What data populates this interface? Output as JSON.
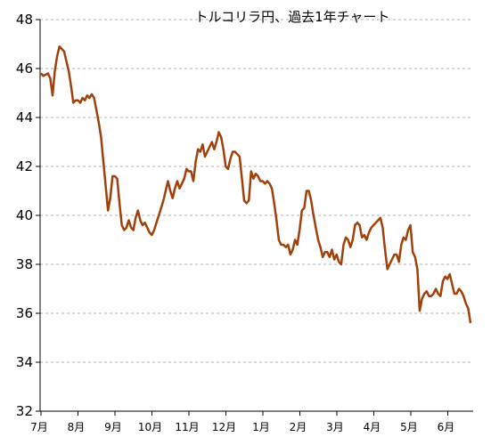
{
  "chart_data": {
    "type": "line",
    "title": "トルコリラ円、過去1年チャート",
    "xlabel": "",
    "ylabel": "",
    "ylim": [
      32,
      48
    ],
    "yticks": [
      32,
      34,
      36,
      38,
      40,
      42,
      44,
      46,
      48
    ],
    "x_ticks": [
      "7月",
      "8月",
      "9月",
      "10月",
      "11月",
      "12月",
      "1月",
      "2月",
      "3月",
      "4月",
      "5月",
      "6月"
    ],
    "grid": "horizontal dashed",
    "colors": {
      "line": "#a0400a",
      "grid": "#b0b0b0",
      "axis": "#000000"
    },
    "series": [
      {
        "values": [
          45.8,
          45.7,
          45.75,
          45.8,
          45.6,
          44.9,
          45.9,
          46.5,
          46.9,
          46.8,
          46.7,
          46.3,
          45.9,
          45.3,
          44.6,
          44.7,
          44.7,
          44.6,
          44.8,
          44.7,
          44.9,
          44.8,
          44.95,
          44.8,
          44.3,
          43.8,
          43.2,
          42.2,
          41.2,
          40.2,
          40.7,
          41.6,
          41.6,
          41.5,
          40.5,
          39.6,
          39.4,
          39.5,
          39.8,
          39.5,
          39.4,
          39.9,
          40.2,
          39.8,
          39.6,
          39.7,
          39.5,
          39.3,
          39.2,
          39.4,
          39.7,
          40.0,
          40.3,
          40.6,
          41.0,
          41.4,
          41.0,
          40.7,
          41.1,
          41.4,
          41.1,
          41.3,
          41.5,
          41.9,
          41.8,
          41.8,
          41.4,
          42.2,
          42.7,
          42.6,
          42.9,
          42.4,
          42.6,
          42.8,
          43.0,
          42.7,
          43.0,
          43.4,
          43.2,
          42.7,
          42.0,
          41.9,
          42.3,
          42.6,
          42.6,
          42.5,
          42.4,
          41.5,
          40.6,
          40.5,
          40.6,
          41.8,
          41.5,
          41.7,
          41.6,
          41.4,
          41.4,
          41.3,
          41.4,
          41.3,
          41.1,
          40.5,
          39.8,
          39.0,
          38.8,
          38.8,
          38.7,
          38.8,
          38.4,
          38.6,
          39.0,
          38.8,
          39.4,
          40.2,
          40.3,
          41.0,
          41.0,
          40.6,
          40.0,
          39.5,
          39.0,
          38.7,
          38.3,
          38.5,
          38.5,
          38.3,
          38.6,
          38.2,
          38.4,
          38.1,
          38.0,
          38.8,
          39.1,
          39.0,
          38.7,
          39.0,
          39.6,
          39.7,
          39.6,
          39.1,
          39.2,
          39.0,
          39.3,
          39.5,
          39.6,
          39.7,
          39.8,
          39.9,
          39.5,
          38.6,
          37.8,
          38.0,
          38.2,
          38.4,
          38.4,
          38.1,
          38.8,
          39.1,
          39.0,
          39.4,
          39.6,
          38.5,
          38.3,
          37.8,
          36.1,
          36.6,
          36.8,
          36.9,
          36.7,
          36.7,
          36.8,
          37.0,
          36.8,
          36.7,
          37.3,
          37.5,
          37.4,
          37.6,
          37.2,
          36.8,
          36.8,
          37.0,
          36.9,
          36.7,
          36.4,
          36.2,
          35.6
        ]
      }
    ]
  }
}
